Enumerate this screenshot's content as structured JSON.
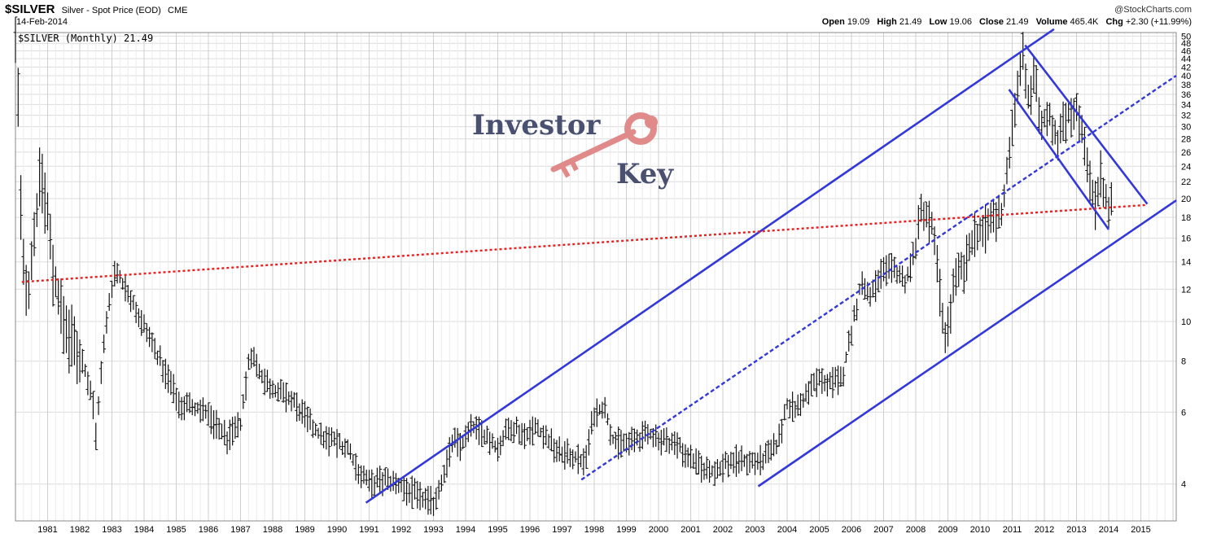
{
  "header": {
    "symbol": "$SILVER",
    "description": "Silver - Spot Price (EOD)",
    "exchange": "CME",
    "date": "14-Feb-2014",
    "credit": "@StockCharts.com",
    "ohlc": {
      "open_label": "Open",
      "open": "19.09",
      "high_label": "High",
      "high": "21.49",
      "low_label": "Low",
      "low": "19.06",
      "close_label": "Close",
      "close": "21.49",
      "volume_label": "Volume",
      "volume": "465.4K",
      "chg_label": "Chg",
      "chg": "+2.30 (+11.99%)"
    }
  },
  "logo": {
    "line1": "Investor",
    "line2": "Key",
    "key_color": "#e08a8a"
  },
  "chart_data": {
    "type": "bar",
    "legend": "$SILVER (Monthly) 21.49",
    "y_scale": "log",
    "ylim": [
      3.25,
      51
    ],
    "xlim": [
      1980.0,
      2016.1
    ],
    "y_ticks": [
      4,
      6,
      8,
      10,
      12,
      14,
      16,
      18,
      20,
      22,
      24,
      26,
      28,
      30,
      32,
      34,
      36,
      38,
      40,
      42,
      44,
      46,
      48,
      50
    ],
    "x_tick_labels": [
      "1981",
      "1982",
      "1983",
      "1984",
      "1985",
      "1986",
      "1987",
      "1988",
      "1989",
      "1990",
      "1991",
      "1992",
      "1993",
      "1994",
      "1995",
      "1996",
      "1997",
      "1998",
      "1999",
      "2000",
      "2001",
      "2002",
      "2003",
      "2004",
      "2005",
      "2006",
      "2007",
      "2008",
      "2009",
      "2010",
      "2011",
      "2012",
      "2013",
      "2014",
      "2015"
    ],
    "grid": true,
    "price_path": [
      [
        1980.0,
        48
      ],
      [
        1980.05,
        32
      ],
      [
        1980.1,
        38
      ],
      [
        1980.2,
        14
      ],
      [
        1980.4,
        12
      ],
      [
        1980.6,
        17
      ],
      [
        1980.8,
        24
      ],
      [
        1981.0,
        18
      ],
      [
        1981.2,
        13
      ],
      [
        1981.5,
        10
      ],
      [
        1981.8,
        9
      ],
      [
        1982.1,
        8
      ],
      [
        1982.4,
        6.5
      ],
      [
        1982.5,
        5.3
      ],
      [
        1982.7,
        8.0
      ],
      [
        1982.9,
        11
      ],
      [
        1983.1,
        13.5
      ],
      [
        1983.3,
        12.5
      ],
      [
        1983.6,
        11.5
      ],
      [
        1983.9,
        10
      ],
      [
        1984.2,
        9
      ],
      [
        1984.5,
        8
      ],
      [
        1984.8,
        7.2
      ],
      [
        1985.1,
        6.3
      ],
      [
        1985.5,
        6.2
      ],
      [
        1985.9,
        6.0
      ],
      [
        1986.3,
        5.5
      ],
      [
        1986.6,
        5.2
      ],
      [
        1987.0,
        5.6
      ],
      [
        1987.3,
        8.5
      ],
      [
        1987.6,
        7.5
      ],
      [
        1987.9,
        7.0
      ],
      [
        1988.3,
        6.6
      ],
      [
        1988.7,
        6.3
      ],
      [
        1989.1,
        5.7
      ],
      [
        1989.5,
        5.2
      ],
      [
        1989.9,
        5.1
      ],
      [
        1990.3,
        4.9
      ],
      [
        1990.7,
        4.3
      ],
      [
        1991.0,
        4.0
      ],
      [
        1991.4,
        4.1
      ],
      [
        1991.8,
        4.0
      ],
      [
        1992.2,
        3.9
      ],
      [
        1992.6,
        3.7
      ],
      [
        1993.0,
        3.6
      ],
      [
        1993.3,
        4.2
      ],
      [
        1993.6,
        5.1
      ],
      [
        1993.9,
        5.0
      ],
      [
        1994.2,
        5.5
      ],
      [
        1994.6,
        5.3
      ],
      [
        1995.0,
        4.9
      ],
      [
        1995.4,
        5.6
      ],
      [
        1995.8,
        5.3
      ],
      [
        1996.2,
        5.5
      ],
      [
        1996.6,
        5.1
      ],
      [
        1996.9,
        4.8
      ],
      [
        1997.3,
        4.7
      ],
      [
        1997.7,
        4.5
      ],
      [
        1998.0,
        6.0
      ],
      [
        1998.3,
        6.2
      ],
      [
        1998.6,
        5.1
      ],
      [
        1999.0,
        5.0
      ],
      [
        1999.4,
        5.2
      ],
      [
        1999.8,
        5.3
      ],
      [
        2000.2,
        5.1
      ],
      [
        2000.6,
        5.0
      ],
      [
        2000.9,
        4.7
      ],
      [
        2001.3,
        4.4
      ],
      [
        2001.7,
        4.3
      ],
      [
        2002.1,
        4.5
      ],
      [
        2002.5,
        4.6
      ],
      [
        2002.9,
        4.5
      ],
      [
        2003.3,
        4.6
      ],
      [
        2003.7,
        5.0
      ],
      [
        2004.0,
        6.3
      ],
      [
        2004.3,
        6.1
      ],
      [
        2004.6,
        6.6
      ],
      [
        2004.9,
        7.2
      ],
      [
        2005.3,
        7.1
      ],
      [
        2005.7,
        7.2
      ],
      [
        2006.0,
        9.5
      ],
      [
        2006.3,
        12.5
      ],
      [
        2006.6,
        11.5
      ],
      [
        2006.9,
        13.2
      ],
      [
        2007.3,
        13.5
      ],
      [
        2007.7,
        12.5
      ],
      [
        2008.0,
        15.5
      ],
      [
        2008.2,
        19
      ],
      [
        2008.5,
        17
      ],
      [
        2008.7,
        13
      ],
      [
        2008.85,
        10
      ],
      [
        2008.95,
        9.2
      ],
      [
        2009.2,
        12.5
      ],
      [
        2009.5,
        13.5
      ],
      [
        2009.8,
        16.5
      ],
      [
        2010.1,
        16.5
      ],
      [
        2010.4,
        18
      ],
      [
        2010.7,
        18.5
      ],
      [
        2010.9,
        26
      ],
      [
        2011.1,
        33
      ],
      [
        2011.3,
        47
      ],
      [
        2011.5,
        35
      ],
      [
        2011.7,
        40
      ],
      [
        2011.9,
        30
      ],
      [
        2012.1,
        33
      ],
      [
        2012.4,
        28
      ],
      [
        2012.7,
        32
      ],
      [
        2012.9,
        33.5
      ],
      [
        2013.1,
        31
      ],
      [
        2013.3,
        25
      ],
      [
        2013.5,
        20
      ],
      [
        2013.6,
        19.5
      ],
      [
        2013.75,
        23
      ],
      [
        2013.9,
        20
      ],
      [
        2014.0,
        19.3
      ],
      [
        2014.12,
        21.49
      ]
    ],
    "trendlines": [
      {
        "color": "#3338d9",
        "style": "solid",
        "x": [
          1990.9,
          2012.3
        ],
        "y": [
          3.6,
          52
        ]
      },
      {
        "color": "#3338d9",
        "style": "dashed",
        "x": [
          1997.6,
          2016.1
        ],
        "y": [
          4.1,
          40
        ]
      },
      {
        "color": "#3338d9",
        "style": "solid",
        "x": [
          2003.1,
          2016.1
        ],
        "y": [
          3.95,
          19.8
        ]
      },
      {
        "color": "#3338d9",
        "style": "solid",
        "x": [
          2011.4,
          2015.2
        ],
        "y": [
          47.5,
          19.4
        ]
      },
      {
        "color": "#3338d9",
        "style": "solid",
        "x": [
          2010.9,
          2014.0
        ],
        "y": [
          37,
          16.8
        ]
      },
      {
        "color": "#e82020",
        "style": "dotted",
        "x": [
          1980.2,
          2015.2
        ],
        "y": [
          12.5,
          19.3
        ]
      }
    ]
  }
}
